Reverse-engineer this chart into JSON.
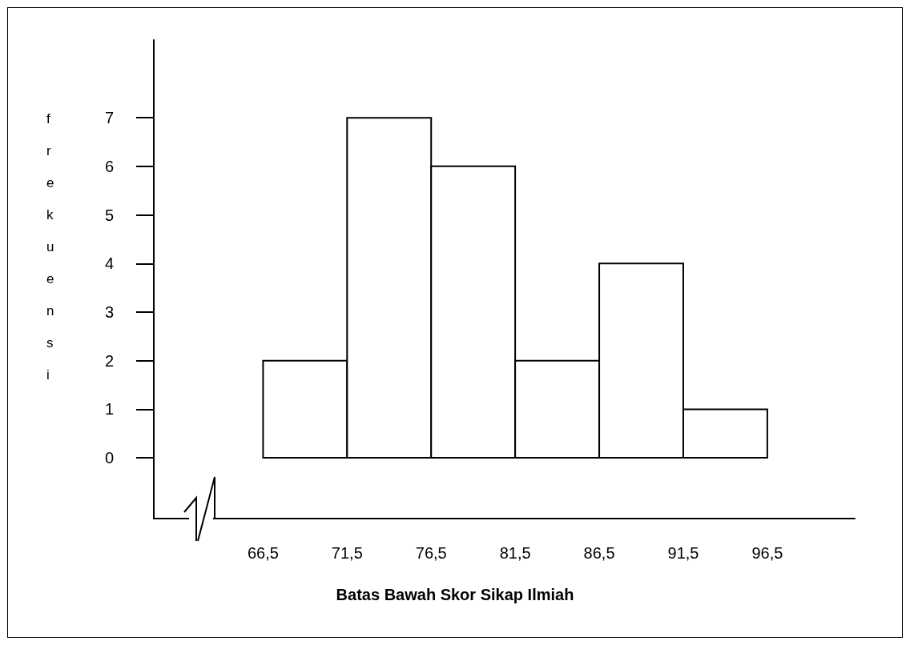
{
  "chart_data": {
    "type": "histogram",
    "xlabel": "Batas Bawah Skor Sikap Ilmiah",
    "ylabel": "frekuensi",
    "bins": [
      66.5,
      71.5,
      76.5,
      81.5,
      86.5,
      91.5,
      96.5
    ],
    "values": [
      2,
      7,
      6,
      2,
      4,
      1
    ],
    "color": "#ffffff",
    "xlim": [
      60,
      101.7
    ],
    "ylim": [
      -1.25,
      8.6
    ],
    "xticks": [
      {
        "value": 66.5,
        "label": "66,5"
      },
      {
        "value": 71.5,
        "label": "71,5"
      },
      {
        "value": 76.5,
        "label": "76,5"
      },
      {
        "value": 81.5,
        "label": "81,5"
      },
      {
        "value": 86.5,
        "label": "86,5"
      },
      {
        "value": 91.5,
        "label": "91,5"
      },
      {
        "value": 96.5,
        "label": "96,5"
      }
    ],
    "yticks": [
      0,
      1,
      2,
      3,
      4,
      5,
      6,
      7
    ],
    "grid": false
  }
}
